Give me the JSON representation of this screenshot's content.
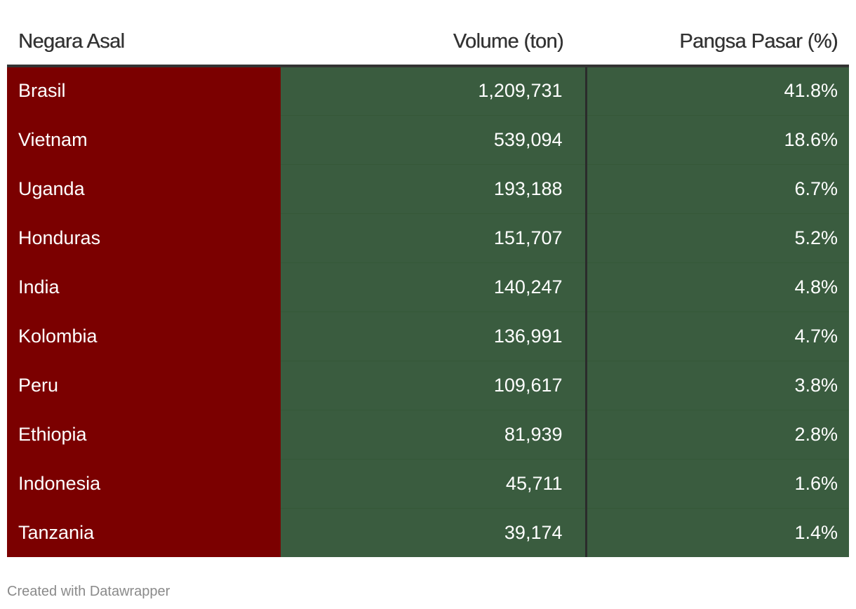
{
  "chart_data": {
    "type": "table",
    "columns": [
      "Negara Asal",
      "Volume (ton)",
      "Pangsa Pasar (%)"
    ],
    "rows": [
      {
        "country": "Brasil",
        "volume": "1,209,731",
        "share": "41.8%"
      },
      {
        "country": "Vietnam",
        "volume": "539,094",
        "share": "18.6%"
      },
      {
        "country": "Uganda",
        "volume": "193,188",
        "share": "6.7%"
      },
      {
        "country": "Honduras",
        "volume": "151,707",
        "share": "5.2%"
      },
      {
        "country": "India",
        "volume": "140,247",
        "share": "4.8%"
      },
      {
        "country": "Kolombia",
        "volume": "136,991",
        "share": "4.7%"
      },
      {
        "country": "Peru",
        "volume": "109,617",
        "share": "3.8%"
      },
      {
        "country": "Ethiopia",
        "volume": "81,939",
        "share": "2.8%"
      },
      {
        "country": "Indonesia",
        "volume": "45,711",
        "share": "1.6%"
      },
      {
        "country": "Tanzania",
        "volume": "39,174",
        "share": "1.4%"
      }
    ],
    "colors": {
      "country_column": "#7b0000",
      "value_columns": "#3a5c3f",
      "header_text": "#333333",
      "cell_text": "#ffffff"
    }
  },
  "footer": {
    "credit": "Created with Datawrapper"
  }
}
